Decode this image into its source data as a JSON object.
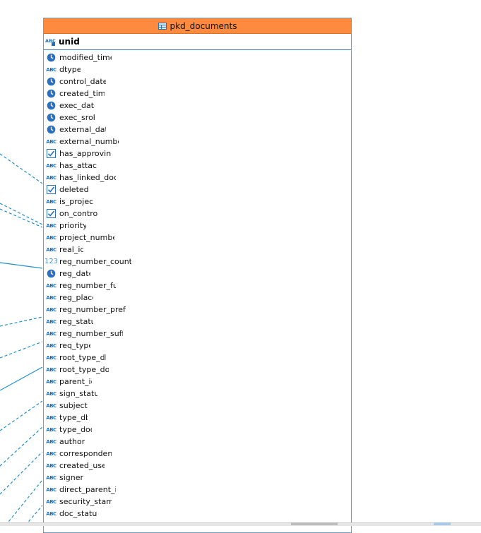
{
  "entity": {
    "title": "pkd_documents",
    "pk": {
      "name": "unid",
      "type": "text"
    },
    "columns": [
      {
        "name": "modified_time",
        "type": "date"
      },
      {
        "name": "dtype",
        "type": "text"
      },
      {
        "name": "control_date",
        "type": "date"
      },
      {
        "name": "created_time",
        "type": "date"
      },
      {
        "name": "exec_date",
        "type": "date"
      },
      {
        "name": "exec_srok",
        "type": "date"
      },
      {
        "name": "external_date",
        "type": "date"
      },
      {
        "name": "external_number",
        "type": "text"
      },
      {
        "name": "has_approving",
        "type": "bool"
      },
      {
        "name": "has_attach",
        "type": "text"
      },
      {
        "name": "has_linked_doc",
        "type": "text"
      },
      {
        "name": "deleted",
        "type": "bool"
      },
      {
        "name": "is_project",
        "type": "text"
      },
      {
        "name": "on_control",
        "type": "bool"
      },
      {
        "name": "priority",
        "type": "text"
      },
      {
        "name": "project_number",
        "type": "text"
      },
      {
        "name": "real_id",
        "type": "text"
      },
      {
        "name": "reg_number_counter",
        "type": "number"
      },
      {
        "name": "reg_date",
        "type": "date"
      },
      {
        "name": "reg_number_full",
        "type": "text"
      },
      {
        "name": "reg_place",
        "type": "text"
      },
      {
        "name": "reg_number_prefix",
        "type": "text"
      },
      {
        "name": "reg_status",
        "type": "text"
      },
      {
        "name": "reg_number_suffix",
        "type": "text"
      },
      {
        "name": "req_type",
        "type": "text"
      },
      {
        "name": "root_type_db",
        "type": "text"
      },
      {
        "name": "root_type_doc",
        "type": "text"
      },
      {
        "name": "parent_id",
        "type": "text"
      },
      {
        "name": "sign_status",
        "type": "text"
      },
      {
        "name": "subject",
        "type": "text"
      },
      {
        "name": "type_db",
        "type": "text"
      },
      {
        "name": "type_doc",
        "type": "text"
      },
      {
        "name": "author",
        "type": "text"
      },
      {
        "name": "correspondent",
        "type": "text"
      },
      {
        "name": "created_user",
        "type": "text"
      },
      {
        "name": "signer",
        "type": "text"
      },
      {
        "name": "direct_parent_id",
        "type": "text"
      },
      {
        "name": "security_stamp",
        "type": "text"
      },
      {
        "name": "doc_status",
        "type": "text"
      }
    ],
    "icon_glyphs": {
      "text": "ABC",
      "number": "123"
    }
  },
  "colors": {
    "header_bg": "#fd8a3f",
    "border": "#6f9fc4",
    "connector": "#1f8fd0"
  }
}
